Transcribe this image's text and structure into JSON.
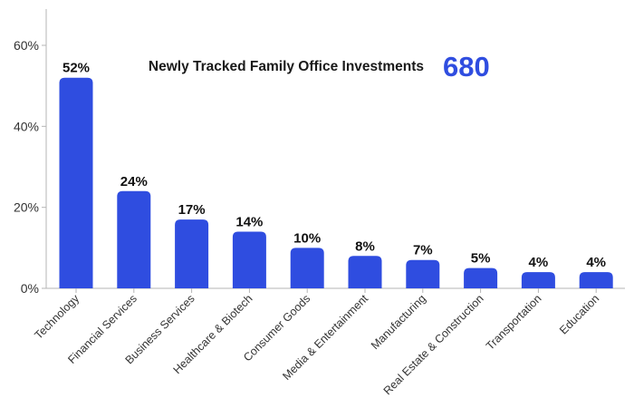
{
  "header": {
    "title": "Newly Tracked Family Office Investments",
    "value": "680"
  },
  "colors": {
    "bar": "#2f4de0",
    "accent": "#2f4de0",
    "axis": "#b5b5b5"
  },
  "chart_data": {
    "type": "bar",
    "title": "Newly Tracked Family Office Investments",
    "categories": [
      "Technology",
      "Financial Services",
      "Business Services",
      "Healthcare & Biotech",
      "Consumer Goods",
      "Media & Entertainment",
      "Manufacturing",
      "Real Estate & Construction",
      "Transportation",
      "Education"
    ],
    "values": [
      52,
      24,
      17,
      14,
      10,
      8,
      7,
      5,
      4,
      4
    ],
    "data_labels": [
      "52%",
      "24%",
      "17%",
      "14%",
      "10%",
      "8%",
      "7%",
      "5%",
      "4%",
      "4%"
    ],
    "ylim": [
      0,
      60
    ],
    "y_ticks": [
      0,
      20,
      40,
      60
    ],
    "y_tick_labels": [
      "0%",
      "20%",
      "40%",
      "60%"
    ],
    "xlabel": "",
    "ylabel": "",
    "grid": false,
    "legend": "none"
  }
}
